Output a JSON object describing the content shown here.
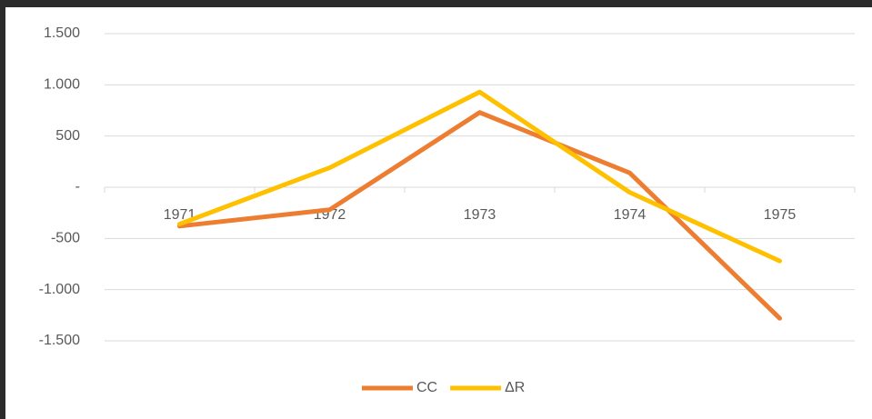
{
  "chart_data": {
    "type": "line",
    "categories": [
      "1971",
      "1972",
      "1973",
      "1974",
      "1975"
    ],
    "series": [
      {
        "name": "CC",
        "color": "#ed7d31",
        "values": [
          -380,
          -220,
          730,
          140,
          -1280
        ]
      },
      {
        "name": "ΔR",
        "color": "#ffc000",
        "values": [
          -360,
          190,
          930,
          -50,
          -720
        ]
      }
    ],
    "ylim": [
      -1500,
      1500
    ],
    "yticks": [
      {
        "value": -1500,
        "label": "-1.500"
      },
      {
        "value": -1000,
        "label": "-1.000"
      },
      -500,
      {
        "value": 0,
        "label": "-"
      },
      500,
      {
        "value": 1000,
        "label": "1.000"
      },
      {
        "value": 1500,
        "label": "1.500"
      }
    ],
    "grid": true,
    "legend": "bottom"
  }
}
